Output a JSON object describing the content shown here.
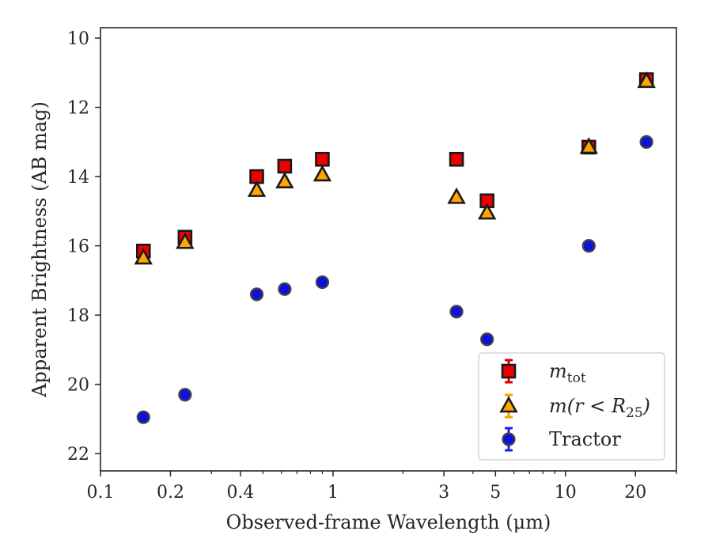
{
  "chart_data": {
    "type": "scatter",
    "title": "",
    "xlabel": "Observed-frame Wavelength (μm)",
    "ylabel": "Apparent Brightness (AB mag)",
    "xscale": "log",
    "xlim": [
      0.1,
      30
    ],
    "ylim": [
      22.5,
      9.7
    ],
    "y_inverted": true,
    "x_ticks": [
      {
        "value": 0.1,
        "label": "0.1"
      },
      {
        "value": 0.2,
        "label": "0.2"
      },
      {
        "value": 0.4,
        "label": "0.4"
      },
      {
        "value": 1,
        "label": "1"
      },
      {
        "value": 3,
        "label": "3"
      },
      {
        "value": 5,
        "label": "5"
      },
      {
        "value": 10,
        "label": "10"
      },
      {
        "value": 20,
        "label": "20"
      }
    ],
    "x_minor_ticks": [
      0.3,
      0.5,
      0.6,
      0.7,
      0.8,
      0.9,
      2,
      4,
      6,
      7,
      8,
      9,
      30
    ],
    "y_ticks": [
      {
        "value": 10,
        "label": "10"
      },
      {
        "value": 12,
        "label": "12"
      },
      {
        "value": 14,
        "label": "14"
      },
      {
        "value": 16,
        "label": "16"
      },
      {
        "value": 18,
        "label": "18"
      },
      {
        "value": 20,
        "label": "20"
      },
      {
        "value": 22,
        "label": "22"
      }
    ],
    "grid": false,
    "legend_position": "lower-right",
    "series": [
      {
        "name": "m_tot",
        "legend_main": "m",
        "legend_sub": "tot",
        "marker": "square",
        "fill": "#ee0000",
        "errorbar_color": "#dd0000",
        "x": [
          0.153,
          0.231,
          0.47,
          0.62,
          0.9,
          3.4,
          4.6,
          12.6,
          22.3
        ],
        "y": [
          16.15,
          15.75,
          14.0,
          13.7,
          13.5,
          13.5,
          14.7,
          13.15,
          11.2
        ]
      },
      {
        "name": "m(r < R25)",
        "legend_main": "m(r < R",
        "legend_sub": "25",
        "legend_tail": ")",
        "marker": "triangle",
        "fill": "#ffa500",
        "errorbar_color": "#f5a000",
        "x": [
          0.153,
          0.231,
          0.47,
          0.62,
          0.9,
          3.4,
          4.6,
          12.6,
          22.3
        ],
        "y": [
          16.35,
          15.9,
          14.4,
          14.15,
          13.95,
          14.6,
          15.05,
          13.15,
          11.25
        ]
      },
      {
        "name": "Tractor",
        "legend_main": "Tractor",
        "marker": "circle",
        "fill": "#1010dd",
        "errorbar_color": "#2020ee",
        "x": [
          0.153,
          0.231,
          0.47,
          0.62,
          0.9,
          3.4,
          4.6,
          12.6,
          22.3
        ],
        "y": [
          20.95,
          20.3,
          17.4,
          17.25,
          17.05,
          17.9,
          18.7,
          16.0,
          13.0
        ]
      }
    ]
  }
}
